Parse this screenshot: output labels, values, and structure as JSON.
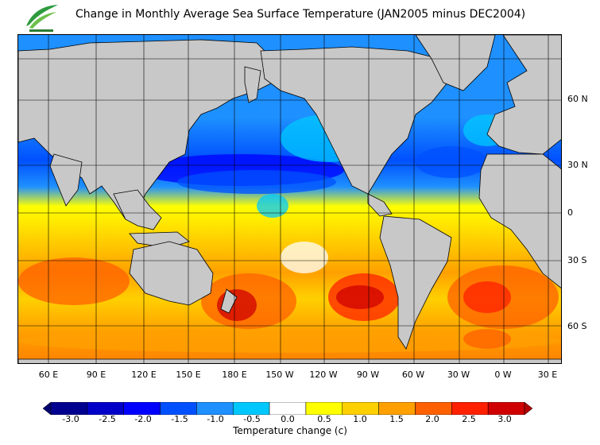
{
  "title": "Change in Monthly Average Sea Surface Temperature (JAN2005 minus DEC2004)",
  "logo": {
    "icon": "leaf-logo-icon",
    "text": ""
  },
  "lat_labels": [
    "60 N",
    "30 N",
    "0",
    "30 S",
    "60 S"
  ],
  "lon_labels": [
    "60 E",
    "90 E",
    "120 E",
    "150 E",
    "180 E",
    "150 W",
    "120 W",
    "90 W",
    "60 W",
    "30 W",
    "0 W",
    "30 E"
  ],
  "colorbar": {
    "unit_label": "Temperature change  (c)",
    "tick_labels": [
      "-3.0",
      "-2.5",
      "-2.0",
      "-1.5",
      "-1.0",
      "-0.5",
      "0.0",
      "0.5",
      "1.0",
      "1.5",
      "2.0",
      "2.5",
      "3.0"
    ],
    "colors": [
      "#000090",
      "#0000c8",
      "#0000ff",
      "#0050ff",
      "#1e90ff",
      "#00c8ff",
      "#ffffff",
      "#ffff00",
      "#ffd000",
      "#ffa000",
      "#ff6000",
      "#ff2000",
      "#d00000"
    ],
    "under_color": "#000070",
    "over_color": "#b00000"
  },
  "colors": {
    "land": "#c8c8c8",
    "coast": "#000000",
    "grid": "#000000"
  }
}
